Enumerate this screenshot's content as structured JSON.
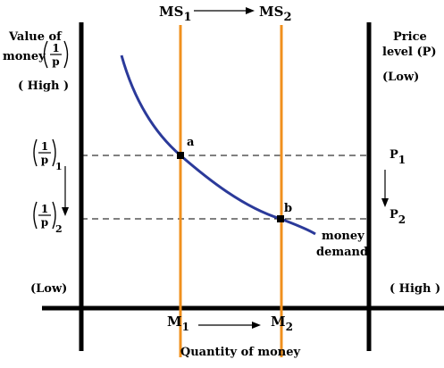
{
  "left_axis": {
    "title_line1": "Value of",
    "title_line2": "money",
    "fraction_num": "1",
    "fraction_den": "p",
    "high_label": "( High )",
    "low_label": "(Low)"
  },
  "right_axis": {
    "title_line1": "Price",
    "title_line2": "level (P)",
    "low_label": "(Low)",
    "high_label": "( High )"
  },
  "x_axis": {
    "title": "Quantity of money",
    "m_base": "M",
    "m1_sub": "1",
    "m2_sub": "2"
  },
  "supply": {
    "ms_base": "MS",
    "ms1_sub": "1",
    "ms2_sub": "2"
  },
  "levels": {
    "frac1_num": "1",
    "frac1_den": "p",
    "frac1_sub": "1",
    "frac2_num": "1",
    "frac2_den": "p",
    "frac2_sub": "2",
    "p_base": "P",
    "p1_sub": "1",
    "p2_sub": "2"
  },
  "points": {
    "a_label": "a",
    "b_label": "b"
  },
  "demand": {
    "label_line1": "money",
    "label_line2": "demand"
  },
  "colors": {
    "supply_line": "#f0901e",
    "demand_curve": "#2b3a9a",
    "axis": "#000000"
  }
}
